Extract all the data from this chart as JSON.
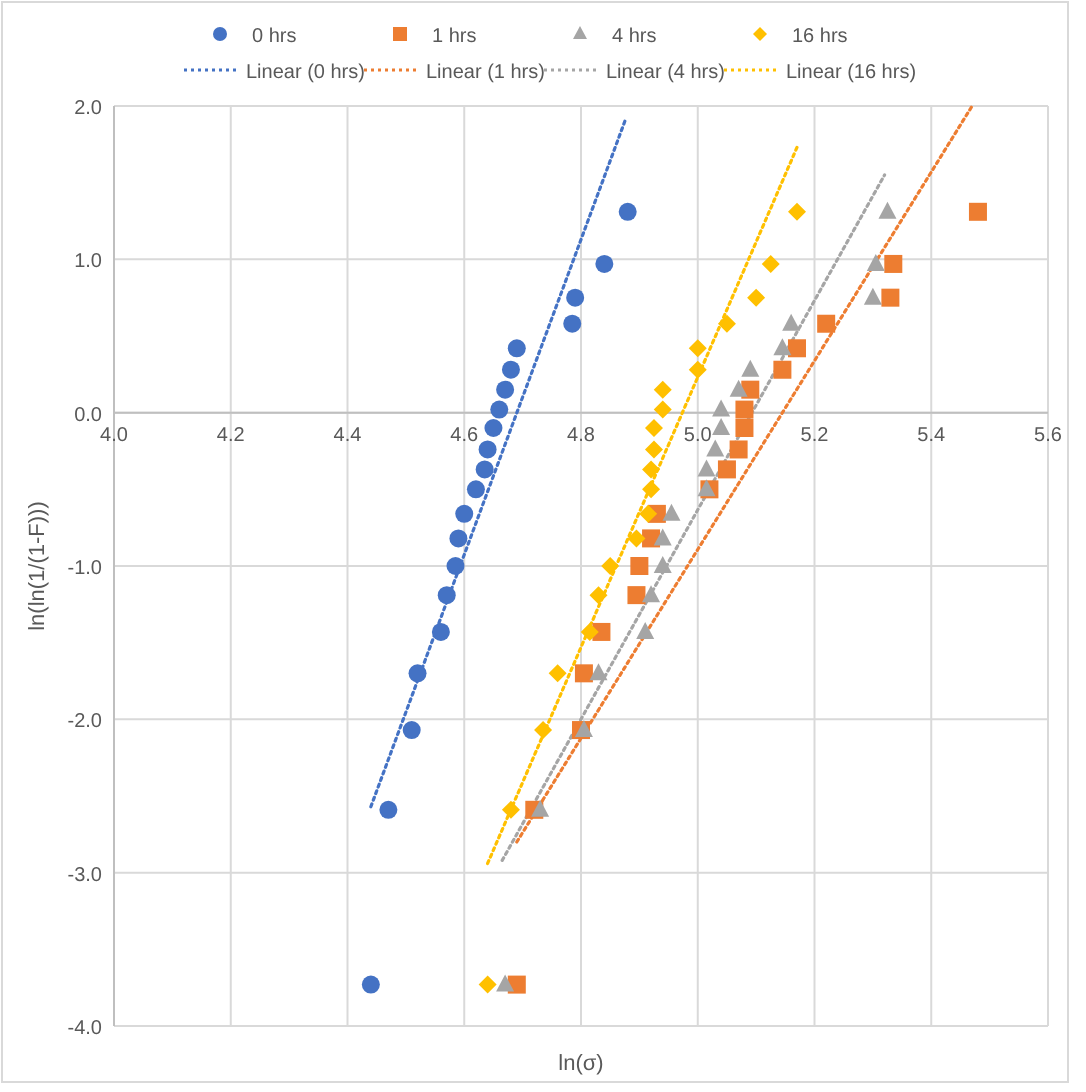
{
  "chart_data": {
    "type": "scatter",
    "xlabel": "ln(σ)",
    "ylabel": "ln(ln(1/(1-F)))",
    "xlim": [
      4.0,
      5.6
    ],
    "ylim": [
      -4.0,
      2.0
    ],
    "xticks": [
      {
        "value": 4.0,
        "label": "4.0"
      },
      {
        "value": 4.2,
        "label": "4.2"
      },
      {
        "value": 4.4,
        "label": "4.4"
      },
      {
        "value": 4.6,
        "label": "4.6"
      },
      {
        "value": 4.8,
        "label": "4.8"
      },
      {
        "value": 5.0,
        "label": "5.0"
      },
      {
        "value": 5.2,
        "label": "5.2"
      },
      {
        "value": 5.4,
        "label": "5.4"
      },
      {
        "value": 5.6,
        "label": "5.6"
      }
    ],
    "yticks": [
      {
        "value": -4,
        "label": "-4.0"
      },
      {
        "value": -3,
        "label": "-3.0"
      },
      {
        "value": -2,
        "label": "-2.0"
      },
      {
        "value": -1,
        "label": "-1.0"
      },
      {
        "value": 0,
        "label": "0.0"
      },
      {
        "value": 1,
        "label": "1.0"
      },
      {
        "value": 2,
        "label": "2.0"
      }
    ],
    "grid": true,
    "legend": "top",
    "series": [
      {
        "name": "0 hrs",
        "marker": "circle",
        "color": "#4472c4",
        "x": [
          4.44,
          4.47,
          4.51,
          4.52,
          4.56,
          4.57,
          4.585,
          4.59,
          4.6,
          4.62,
          4.635,
          4.64,
          4.65,
          4.66,
          4.67,
          4.68,
          4.69,
          4.785,
          4.79,
          4.84,
          4.88
        ],
        "values": [
          -3.73,
          -2.59,
          -2.07,
          -1.7,
          -1.43,
          -1.19,
          -1.0,
          -0.82,
          -0.66,
          -0.5,
          -0.37,
          -0.24,
          -0.1,
          0.02,
          0.15,
          0.28,
          0.42,
          0.58,
          0.75,
          0.97,
          1.31
        ]
      },
      {
        "name": "1 hrs",
        "marker": "square",
        "color": "#ed7d31",
        "x": [
          4.69,
          4.72,
          4.8,
          4.805,
          4.835,
          4.895,
          4.9,
          4.92,
          4.93,
          5.02,
          5.05,
          5.07,
          5.08,
          5.08,
          5.09,
          5.145,
          5.17,
          5.22,
          5.33,
          5.335,
          5.48
        ],
        "values": [
          -3.73,
          -2.59,
          -2.07,
          -1.7,
          -1.43,
          -1.19,
          -1.0,
          -0.82,
          -0.66,
          -0.5,
          -0.37,
          -0.24,
          -0.1,
          0.02,
          0.15,
          0.28,
          0.42,
          0.58,
          0.75,
          0.97,
          1.31
        ]
      },
      {
        "name": "4 hrs",
        "marker": "triangle",
        "color": "#a5a5a5",
        "x": [
          4.67,
          4.73,
          4.805,
          4.83,
          4.91,
          4.92,
          4.94,
          4.94,
          4.955,
          5.015,
          5.015,
          5.03,
          5.04,
          5.04,
          5.07,
          5.09,
          5.145,
          5.16,
          5.3,
          5.305,
          5.325
        ],
        "values": [
          -3.73,
          -2.59,
          -2.07,
          -1.7,
          -1.43,
          -1.19,
          -1.0,
          -0.82,
          -0.66,
          -0.5,
          -0.37,
          -0.24,
          -0.1,
          0.02,
          0.15,
          0.28,
          0.42,
          0.58,
          0.75,
          0.97,
          1.31
        ]
      },
      {
        "name": "16 hrs",
        "marker": "diamond",
        "color": "#ffc000",
        "x": [
          4.64,
          4.68,
          4.735,
          4.76,
          4.815,
          4.83,
          4.85,
          4.895,
          4.915,
          4.92,
          4.92,
          4.925,
          4.925,
          4.94,
          4.94,
          5.0,
          5.0,
          5.05,
          5.1,
          5.125,
          5.17
        ],
        "values": [
          -3.73,
          -2.59,
          -2.07,
          -1.7,
          -1.43,
          -1.19,
          -1.0,
          -0.82,
          -0.66,
          -0.5,
          -0.37,
          -0.24,
          -0.1,
          0.02,
          0.15,
          0.28,
          0.42,
          0.58,
          0.75,
          0.97,
          1.31
        ]
      },
      {
        "name": "Linear (0 hrs)",
        "type": "line",
        "line_style": "dotted",
        "marker": "none",
        "color": "#4472c4",
        "x": [
          4.44,
          4.877
        ],
        "values": [
          -2.57,
          1.92
        ]
      },
      {
        "name": "Linear (1 hrs)",
        "type": "line",
        "line_style": "dotted",
        "marker": "none",
        "color": "#ed7d31",
        "x": [
          4.69,
          5.47
        ],
        "values": [
          -2.8,
          2.0
        ]
      },
      {
        "name": "Linear (4 hrs)",
        "type": "line",
        "line_style": "dotted",
        "marker": "none",
        "color": "#a5a5a5",
        "x": [
          4.665,
          5.32
        ],
        "values": [
          -2.92,
          1.55
        ]
      },
      {
        "name": "Linear (16 hrs)",
        "type": "line",
        "line_style": "dotted",
        "marker": "none",
        "color": "#ffc000",
        "x": [
          4.64,
          5.17
        ],
        "values": [
          -2.94,
          1.73
        ]
      }
    ]
  }
}
